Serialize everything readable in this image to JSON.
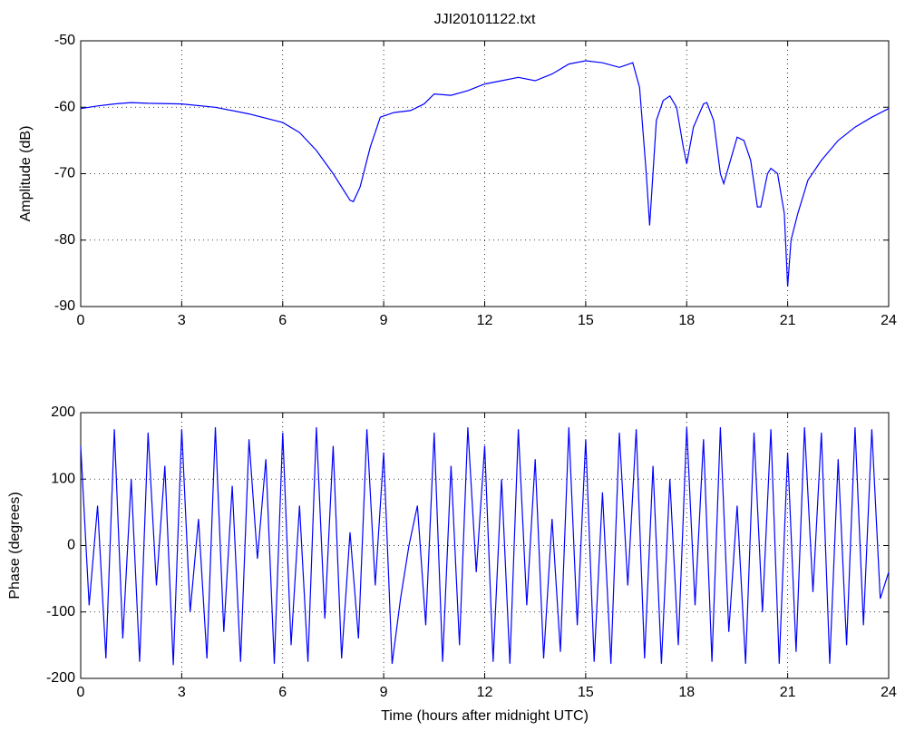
{
  "chart_data": [
    {
      "type": "line",
      "title": "JJI20101122.txt",
      "ylabel": "Amplitude (dB)",
      "grid": true,
      "xlim": [
        0,
        24
      ],
      "xticks": [
        0,
        3,
        6,
        9,
        12,
        15,
        18,
        21,
        24
      ],
      "ylim": [
        -90,
        -50
      ],
      "yticks": [
        -90,
        -80,
        -70,
        -60,
        -50
      ],
      "x": [
        0,
        0.5,
        1,
        1.5,
        2,
        3,
        4,
        5,
        6,
        6.5,
        7,
        7.5,
        8,
        8.1,
        8.3,
        8.6,
        8.9,
        9.3,
        9.8,
        10.2,
        10.5,
        11,
        11.5,
        12,
        12.5,
        13,
        13.5,
        14,
        14.5,
        15,
        15.5,
        16,
        16.4,
        16.6,
        16.8,
        16.9,
        17.1,
        17.3,
        17.5,
        17.7,
        17.9,
        18,
        18.2,
        18.5,
        18.6,
        18.8,
        19,
        19.1,
        19.3,
        19.5,
        19.7,
        19.9,
        20.1,
        20.2,
        20.4,
        20.5,
        20.7,
        20.9,
        21,
        21.1,
        21.3,
        21.6,
        22,
        22.5,
        23,
        23.5,
        24
      ],
      "series": [
        {
          "color": "#0000ff",
          "values": [
            -60.2,
            -59.8,
            -59.5,
            -59.3,
            -59.4,
            -59.5,
            -60,
            -61,
            -62.3,
            -63.8,
            -66.5,
            -70,
            -74,
            -74.2,
            -72,
            -66,
            -61.5,
            -60.8,
            -60.5,
            -59.5,
            -58,
            -58.2,
            -57.5,
            -56.5,
            -56,
            -55.5,
            -56,
            -55,
            -53.5,
            -53,
            -53.3,
            -54,
            -53.3,
            -57,
            -70,
            -77.8,
            -62,
            -59,
            -58.3,
            -60,
            -66,
            -68.5,
            -63,
            -59.5,
            -59.3,
            -62,
            -70,
            -71.5,
            -68,
            -64.5,
            -65,
            -68,
            -75,
            -75,
            -70,
            -69.2,
            -70,
            -76,
            -87,
            -80,
            -76,
            -71,
            -68,
            -65,
            -63,
            -61.5,
            -60.2
          ]
        }
      ]
    },
    {
      "type": "line",
      "xlabel": "Time (hours after midnight UTC)",
      "ylabel": "Phase (degrees)",
      "grid": true,
      "xlim": [
        0,
        24
      ],
      "xticks": [
        0,
        3,
        6,
        9,
        12,
        15,
        18,
        21,
        24
      ],
      "ylim": [
        -200,
        200
      ],
      "yticks": [
        -200,
        -100,
        0,
        100,
        200
      ],
      "x": [
        0,
        0.25,
        0.5,
        0.75,
        1,
        1.25,
        1.5,
        1.75,
        2,
        2.25,
        2.5,
        2.75,
        3,
        3.25,
        3.5,
        3.75,
        4,
        4.25,
        4.5,
        4.75,
        5,
        5.25,
        5.5,
        5.75,
        6,
        6.25,
        6.5,
        6.75,
        7,
        7.25,
        7.5,
        7.75,
        8,
        8.25,
        8.5,
        8.75,
        9,
        9.25,
        9.5,
        9.75,
        10,
        10.25,
        10.5,
        10.75,
        11,
        11.25,
        11.5,
        11.75,
        12,
        12.25,
        12.5,
        12.75,
        13,
        13.25,
        13.5,
        13.75,
        14,
        14.25,
        14.5,
        14.75,
        15,
        15.25,
        15.5,
        15.75,
        16,
        16.25,
        16.5,
        16.75,
        17,
        17.25,
        17.5,
        17.75,
        18,
        18.25,
        18.5,
        18.75,
        19,
        19.25,
        19.5,
        19.75,
        20,
        20.25,
        20.5,
        20.75,
        21,
        21.25,
        21.5,
        21.75,
        22,
        22.25,
        22.5,
        22.75,
        23,
        23.25,
        23.5,
        23.75,
        24
      ],
      "series": [
        {
          "color": "#0000ff",
          "values": [
            150,
            -90,
            60,
            -170,
            175,
            -140,
            100,
            -175,
            170,
            -60,
            120,
            -180,
            175,
            -100,
            40,
            -170,
            178,
            -130,
            90,
            -175,
            160,
            -20,
            130,
            -178,
            170,
            -150,
            60,
            -175,
            178,
            -110,
            150,
            -170,
            20,
            -140,
            175,
            -60,
            140,
            -178,
            -80,
            0,
            60,
            -120,
            170,
            -175,
            120,
            -150,
            178,
            -40,
            150,
            -175,
            100,
            -178,
            175,
            -90,
            130,
            -170,
            40,
            -160,
            178,
            -120,
            160,
            -175,
            80,
            -178,
            170,
            -60,
            175,
            -170,
            120,
            -178,
            100,
            -150,
            178,
            -90,
            160,
            -175,
            178,
            -130,
            60,
            -178,
            170,
            -100,
            175,
            -178,
            140,
            -160,
            178,
            -70,
            170,
            -178,
            130,
            -150,
            178,
            -120,
            175,
            -80,
            -40
          ]
        }
      ]
    }
  ]
}
